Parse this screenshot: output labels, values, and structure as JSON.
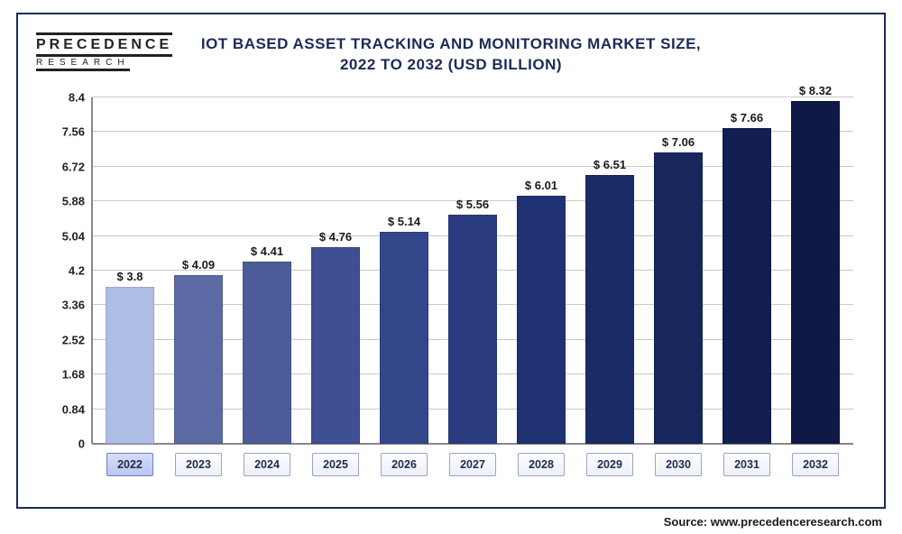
{
  "logo": {
    "main": "PRECEDENCE",
    "sub": "RESEARCH"
  },
  "title_line1": "IOT BASED ASSET TRACKING AND MONITORING MARKET SIZE,",
  "title_line2": "2022 TO 2032 (USD BILLION)",
  "source_text": "Source: www.precedenceresearch.com",
  "chart": {
    "type": "bar",
    "ylim": [
      0,
      8.4
    ],
    "ytick_step": 0.84,
    "yticks": [
      "0",
      "0.84",
      "1.68",
      "2.52",
      "3.36",
      "4.2",
      "5.04",
      "5.88",
      "6.72",
      "7.56",
      "8.4"
    ],
    "grid_color": "#c9c9c9",
    "axis_color": "#888888",
    "background_color": "#ffffff",
    "title_color": "#1d2a57",
    "title_fontsize": 17,
    "label_fontsize": 13,
    "bar_width": 0.72,
    "categories": [
      "2022",
      "2023",
      "2024",
      "2025",
      "2026",
      "2027",
      "2028",
      "2029",
      "2030",
      "2031",
      "2032"
    ],
    "values": [
      3.8,
      4.09,
      4.41,
      4.76,
      5.14,
      5.56,
      6.01,
      6.51,
      7.06,
      7.66,
      8.32
    ],
    "value_labels": [
      "$ 3.8",
      "$ 4.09",
      "$ 4.41",
      "$ 4.76",
      "$ 5.14",
      "$ 5.56",
      "$ 6.01",
      "$ 6.51",
      "$ 7.06",
      "$ 7.66",
      "$ 8.32"
    ],
    "bar_colors": [
      "#aebde3",
      "#5b6aa3",
      "#4c5c99",
      "#3e4f92",
      "#34468a",
      "#2b3d80",
      "#213272",
      "#1b2b66",
      "#17265c",
      "#121f50",
      "#0e1946"
    ],
    "highlight_index": 0,
    "xlabel_bg": "#eef0f7",
    "xlabel_active_bg": "#b9c6ec",
    "xlabel_border": "#9aa4c7"
  }
}
